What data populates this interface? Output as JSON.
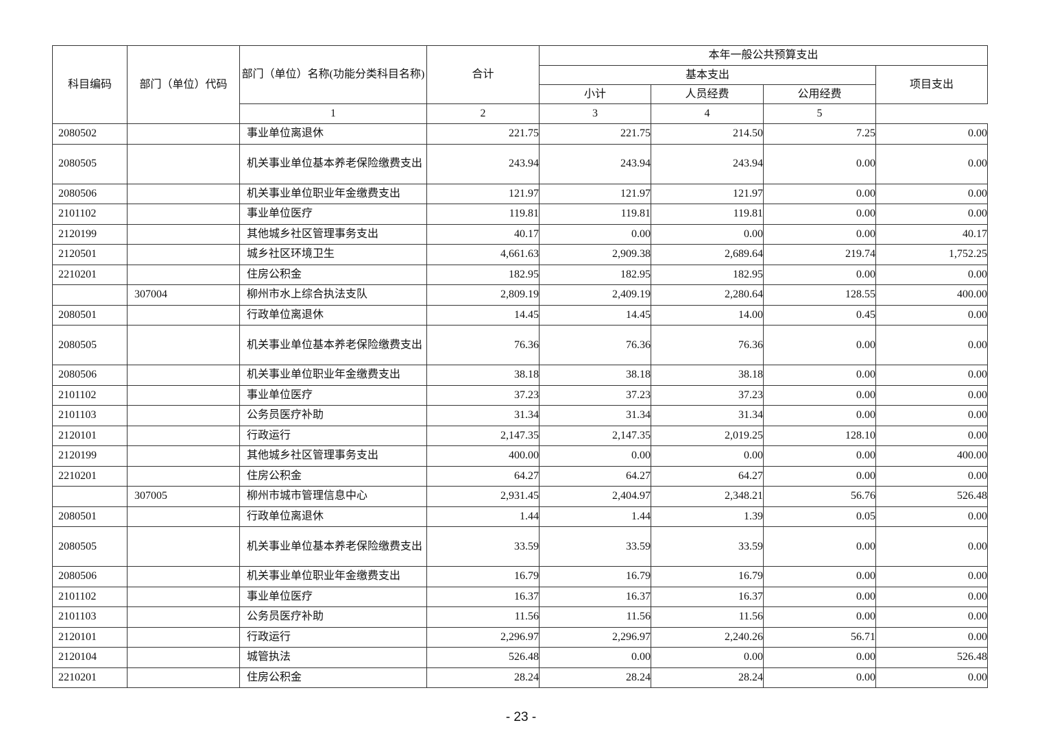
{
  "header": {
    "subject_code": "科目编码",
    "dept_code": "部门（单位）代码",
    "dept_name": "部门（单位）名称(功能分类科目名称)",
    "total": "合计",
    "group_title": "本年一般公共预算支出",
    "basic": "基本支出",
    "subtotal": "小计",
    "personnel": "人员经费",
    "public": "公用经费",
    "project": "项目支出",
    "col_nums": [
      "1",
      "2",
      "3",
      "4",
      "5"
    ]
  },
  "rows": [
    {
      "code": "2080502",
      "dept": "",
      "name": "事业单位离退休",
      "v": [
        "221.75",
        "221.75",
        "214.50",
        "7.25",
        "0.00"
      ]
    },
    {
      "code": "2080505",
      "dept": "",
      "name": "机关事业单位基本养老保险缴费支出",
      "tall": true,
      "v": [
        "243.94",
        "243.94",
        "243.94",
        "0.00",
        "0.00"
      ]
    },
    {
      "code": "2080506",
      "dept": "",
      "name": "机关事业单位职业年金缴费支出",
      "v": [
        "121.97",
        "121.97",
        "121.97",
        "0.00",
        "0.00"
      ]
    },
    {
      "code": "2101102",
      "dept": "",
      "name": "事业单位医疗",
      "v": [
        "119.81",
        "119.81",
        "119.81",
        "0.00",
        "0.00"
      ]
    },
    {
      "code": "2120199",
      "dept": "",
      "name": "其他城乡社区管理事务支出",
      "v": [
        "40.17",
        "0.00",
        "0.00",
        "0.00",
        "40.17"
      ]
    },
    {
      "code": "2120501",
      "dept": "",
      "name": "城乡社区环境卫生",
      "v": [
        "4,661.63",
        "2,909.38",
        "2,689.64",
        "219.74",
        "1,752.25"
      ]
    },
    {
      "code": "2210201",
      "dept": "",
      "name": "住房公积金",
      "v": [
        "182.95",
        "182.95",
        "182.95",
        "0.00",
        "0.00"
      ]
    },
    {
      "code": "",
      "dept": "307004",
      "name": "柳州市水上综合执法支队",
      "v": [
        "2,809.19",
        "2,409.19",
        "2,280.64",
        "128.55",
        "400.00"
      ]
    },
    {
      "code": "2080501",
      "dept": "",
      "name": "行政单位离退休",
      "v": [
        "14.45",
        "14.45",
        "14.00",
        "0.45",
        "0.00"
      ]
    },
    {
      "code": "2080505",
      "dept": "",
      "name": "机关事业单位基本养老保险缴费支出",
      "tall": true,
      "v": [
        "76.36",
        "76.36",
        "76.36",
        "0.00",
        "0.00"
      ]
    },
    {
      "code": "2080506",
      "dept": "",
      "name": "机关事业单位职业年金缴费支出",
      "v": [
        "38.18",
        "38.18",
        "38.18",
        "0.00",
        "0.00"
      ]
    },
    {
      "code": "2101102",
      "dept": "",
      "name": "事业单位医疗",
      "v": [
        "37.23",
        "37.23",
        "37.23",
        "0.00",
        "0.00"
      ]
    },
    {
      "code": "2101103",
      "dept": "",
      "name": "公务员医疗补助",
      "v": [
        "31.34",
        "31.34",
        "31.34",
        "0.00",
        "0.00"
      ]
    },
    {
      "code": "2120101",
      "dept": "",
      "name": "行政运行",
      "v": [
        "2,147.35",
        "2,147.35",
        "2,019.25",
        "128.10",
        "0.00"
      ]
    },
    {
      "code": "2120199",
      "dept": "",
      "name": "其他城乡社区管理事务支出",
      "v": [
        "400.00",
        "0.00",
        "0.00",
        "0.00",
        "400.00"
      ]
    },
    {
      "code": "2210201",
      "dept": "",
      "name": "住房公积金",
      "v": [
        "64.27",
        "64.27",
        "64.27",
        "0.00",
        "0.00"
      ]
    },
    {
      "code": "",
      "dept": "307005",
      "name": "柳州市城市管理信息中心",
      "v": [
        "2,931.45",
        "2,404.97",
        "2,348.21",
        "56.76",
        "526.48"
      ]
    },
    {
      "code": "2080501",
      "dept": "",
      "name": "行政单位离退休",
      "v": [
        "1.44",
        "1.44",
        "1.39",
        "0.05",
        "0.00"
      ]
    },
    {
      "code": "2080505",
      "dept": "",
      "name": "机关事业单位基本养老保险缴费支出",
      "tall": true,
      "v": [
        "33.59",
        "33.59",
        "33.59",
        "0.00",
        "0.00"
      ]
    },
    {
      "code": "2080506",
      "dept": "",
      "name": "机关事业单位职业年金缴费支出",
      "v": [
        "16.79",
        "16.79",
        "16.79",
        "0.00",
        "0.00"
      ]
    },
    {
      "code": "2101102",
      "dept": "",
      "name": "事业单位医疗",
      "v": [
        "16.37",
        "16.37",
        "16.37",
        "0.00",
        "0.00"
      ]
    },
    {
      "code": "2101103",
      "dept": "",
      "name": "公务员医疗补助",
      "v": [
        "11.56",
        "11.56",
        "11.56",
        "0.00",
        "0.00"
      ]
    },
    {
      "code": "2120101",
      "dept": "",
      "name": "行政运行",
      "v": [
        "2,296.97",
        "2,296.97",
        "2,240.26",
        "56.71",
        "0.00"
      ]
    },
    {
      "code": "2120104",
      "dept": "",
      "name": "城管执法",
      "v": [
        "526.48",
        "0.00",
        "0.00",
        "0.00",
        "526.48"
      ]
    },
    {
      "code": "2210201",
      "dept": "",
      "name": "住房公积金",
      "v": [
        "28.24",
        "28.24",
        "28.24",
        "0.00",
        "0.00"
      ]
    }
  ],
  "footer": {
    "page_number": "- 23 -"
  }
}
